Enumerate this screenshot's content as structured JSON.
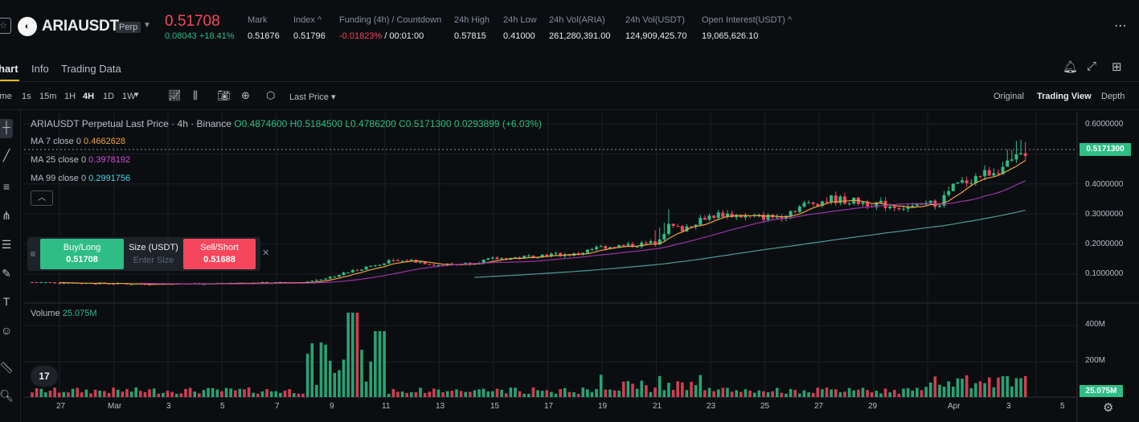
{
  "header": {
    "symbol": "ARIAUSDT",
    "badge": "Perp",
    "price": "0.51708",
    "change": "0.08043 +18.41%",
    "stats": [
      {
        "label": "Mark",
        "value": "0.51676"
      },
      {
        "label": "Index",
        "value": "0.51796"
      },
      {
        "label": "Funding (4h) / Countdown",
        "value_a": "-0.01823%",
        "value_b": " / 00:01:00"
      },
      {
        "label": "24h High",
        "value": "0.57815"
      },
      {
        "label": "24h Low",
        "value": "0.41000"
      },
      {
        "label": "24h Vol(ARIA)",
        "value": "261,280,391.00"
      },
      {
        "label": "24h Vol(USDT)",
        "value": "124,909,425.70"
      },
      {
        "label": "Open Interest(USDT)",
        "value": "19,065,626.10"
      }
    ]
  },
  "tabs": [
    "hart",
    "Info",
    "Trading Data"
  ],
  "toolbar": {
    "time_label": "ime",
    "intervals": [
      "1s",
      "15m",
      "1H",
      "4H",
      "1D",
      "1W"
    ],
    "price_source": "Last Price",
    "views": [
      "Original",
      "Trading View",
      "Depth"
    ]
  },
  "chart": {
    "title": "ARIAUSDT Perpetual Last Price · 4h · Binance",
    "ohlc": {
      "o": "O0.4874600",
      "h": "H0.5184500",
      "l": "L0.4786200",
      "c": "C0.5171300",
      "chg": "0.0293899 (+6.03%)"
    },
    "ma": [
      {
        "label": "MA 7 close 0",
        "value": "0.4662628",
        "color": "#f0a340"
      },
      {
        "label": "MA 25 close 0",
        "value": "0.3978192",
        "color": "#d04fd7"
      },
      {
        "label": "MA 99 close 0",
        "value": "0.2991756",
        "color": "#4fd3e8"
      }
    ],
    "volume_label": "Volume",
    "volume_value": "25.075M",
    "price_ticks": [
      "0.6000000",
      "0.4000000",
      "0.3000000",
      "0.2000000",
      "0.1000000"
    ],
    "current_price_tag": "0.5171300",
    "volume_ticks": [
      "400M",
      "200M"
    ],
    "volume_tag": "25.075M",
    "x_ticks": [
      "27",
      "Mar",
      "3",
      "5",
      "7",
      "9",
      "11",
      "13",
      "15",
      "17",
      "19",
      "21",
      "23",
      "25",
      "27",
      "29",
      "Apr",
      "3",
      "5"
    ],
    "colors": {
      "up": "#2ebd85",
      "down": "#f6465d",
      "ma7": "#f0a340",
      "ma25": "#9c33a8",
      "ma99": "#4b9b94"
    }
  },
  "trade_widget": {
    "buy_label": "Buy/Long",
    "buy_price": "0.51708",
    "size_label": "Size (USDT)",
    "size_placeholder": "Enter Size",
    "sell_label": "Sell/Short",
    "sell_price": "0.51688"
  },
  "chart_data": {
    "type": "candlestick",
    "price_range": [
      0.04,
      0.6
    ],
    "price_levels": [
      {
        "d": 0,
        "c": 0.073
      },
      {
        "d": 2,
        "c": 0.07
      },
      {
        "d": 4,
        "c": 0.067
      },
      {
        "d": 6,
        "c": 0.068
      },
      {
        "d": 8,
        "c": 0.07
      },
      {
        "d": 10,
        "c": 0.072
      },
      {
        "d": 11,
        "c": 0.09
      },
      {
        "d": 12,
        "c": 0.115
      },
      {
        "d": 13,
        "c": 0.14
      },
      {
        "d": 14,
        "c": 0.145
      },
      {
        "d": 15,
        "c": 0.13
      },
      {
        "d": 16,
        "c": 0.135
      },
      {
        "d": 17,
        "c": 0.15
      },
      {
        "d": 18,
        "c": 0.155
      },
      {
        "d": 19,
        "c": 0.165
      },
      {
        "d": 20,
        "c": 0.165
      },
      {
        "d": 21,
        "c": 0.19
      },
      {
        "d": 22,
        "c": 0.195
      },
      {
        "d": 23,
        "c": 0.205
      },
      {
        "d": 23.5,
        "c": 0.26
      },
      {
        "d": 24,
        "c": 0.25
      },
      {
        "d": 24.8,
        "c": 0.29
      },
      {
        "d": 25.5,
        "c": 0.3
      },
      {
        "d": 26.5,
        "c": 0.29
      },
      {
        "d": 27.5,
        "c": 0.29
      },
      {
        "d": 28.5,
        "c": 0.33
      },
      {
        "d": 29.5,
        "c": 0.35
      },
      {
        "d": 30.5,
        "c": 0.34
      },
      {
        "d": 31.5,
        "c": 0.33
      },
      {
        "d": 32.5,
        "c": 0.32
      },
      {
        "d": 33.5,
        "c": 0.34
      },
      {
        "d": 34,
        "c": 0.39
      },
      {
        "d": 35,
        "c": 0.43
      },
      {
        "d": 36,
        "c": 0.46
      },
      {
        "d": 36.8,
        "c": 0.517
      }
    ]
  }
}
